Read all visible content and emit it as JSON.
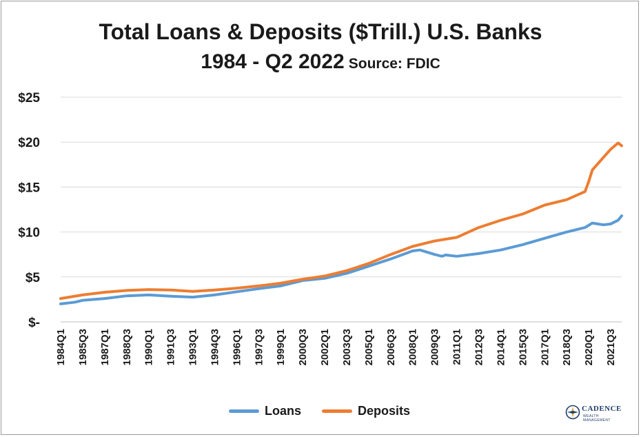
{
  "header": {
    "title": "Total Loans & Deposits ($Trill.) U.S. Banks",
    "subtitle": "1984 - Q2 2022",
    "source": "Source: FDIC"
  },
  "logo": {
    "name": "CADENCE",
    "tagline": "WEALTH MANAGEMENT"
  },
  "chart_data": {
    "type": "line",
    "title": "Total Loans & Deposits ($Trill.) U.S. Banks",
    "subtitle": "1984 - Q2 2022 Source: FDIC",
    "xlabel": "",
    "ylabel": "",
    "y_ticks": [
      "$-",
      "$5",
      "$10",
      "$15",
      "$20",
      "$25"
    ],
    "x_tick_labels": [
      "1984Q1",
      "1985Q3",
      "1987Q1",
      "1988Q3",
      "1990Q1",
      "1991Q3",
      "1993Q1",
      "1994Q3",
      "1996Q1",
      "1997Q3",
      "1999Q1",
      "2000Q3",
      "2002Q1",
      "2003Q3",
      "2005Q1",
      "2006Q3",
      "2008Q1",
      "2009Q3",
      "2011Q1",
      "2012Q3",
      "2014Q1",
      "2015Q3",
      "2017Q1",
      "2018Q3",
      "2020Q1",
      "2021Q3"
    ],
    "ylim": [
      0,
      25
    ],
    "grid": "horizontal",
    "legend_position": "bottom",
    "colors": {
      "loans": "#5b9bd5",
      "deposits": "#ed7d31"
    },
    "series": [
      {
        "name": "Loans",
        "color": "#5b9bd5",
        "points": [
          [
            "1984Q1",
            2.0
          ],
          [
            "1985Q1",
            2.2
          ],
          [
            "1985Q3",
            2.4
          ],
          [
            "1987Q1",
            2.6
          ],
          [
            "1988Q3",
            2.9
          ],
          [
            "1990Q1",
            3.0
          ],
          [
            "1991Q3",
            2.85
          ],
          [
            "1993Q1",
            2.75
          ],
          [
            "1994Q3",
            3.0
          ],
          [
            "1996Q1",
            3.35
          ],
          [
            "1997Q3",
            3.7
          ],
          [
            "1999Q1",
            4.0
          ],
          [
            "2000Q3",
            4.6
          ],
          [
            "2002Q1",
            4.85
          ],
          [
            "2003Q3",
            5.4
          ],
          [
            "2005Q1",
            6.2
          ],
          [
            "2006Q3",
            7.0
          ],
          [
            "2008Q1",
            7.9
          ],
          [
            "2008Q3",
            8.0
          ],
          [
            "2009Q3",
            7.5
          ],
          [
            "2010Q1",
            7.3
          ],
          [
            "2010Q2",
            7.45
          ],
          [
            "2011Q1",
            7.3
          ],
          [
            "2012Q3",
            7.6
          ],
          [
            "2014Q1",
            8.0
          ],
          [
            "2015Q3",
            8.6
          ],
          [
            "2017Q1",
            9.3
          ],
          [
            "2018Q3",
            10.0
          ],
          [
            "2019Q4",
            10.5
          ],
          [
            "2020Q2",
            11.0
          ],
          [
            "2021Q1",
            10.8
          ],
          [
            "2021Q3",
            10.9
          ],
          [
            "2022Q1",
            11.3
          ],
          [
            "2022Q2",
            11.8
          ]
        ]
      },
      {
        "name": "Deposits",
        "color": "#ed7d31",
        "points": [
          [
            "1984Q1",
            2.6
          ],
          [
            "1985Q3",
            3.0
          ],
          [
            "1987Q1",
            3.3
          ],
          [
            "1988Q3",
            3.5
          ],
          [
            "1990Q1",
            3.6
          ],
          [
            "1991Q3",
            3.55
          ],
          [
            "1993Q1",
            3.4
          ],
          [
            "1994Q3",
            3.55
          ],
          [
            "1996Q1",
            3.75
          ],
          [
            "1997Q3",
            4.0
          ],
          [
            "1999Q1",
            4.3
          ],
          [
            "2000Q3",
            4.75
          ],
          [
            "2002Q1",
            5.1
          ],
          [
            "2003Q3",
            5.7
          ],
          [
            "2005Q1",
            6.5
          ],
          [
            "2006Q3",
            7.5
          ],
          [
            "2008Q1",
            8.4
          ],
          [
            "2009Q3",
            9.0
          ],
          [
            "2011Q1",
            9.4
          ],
          [
            "2012Q3",
            10.5
          ],
          [
            "2014Q1",
            11.3
          ],
          [
            "2015Q3",
            12.0
          ],
          [
            "2017Q1",
            13.0
          ],
          [
            "2018Q3",
            13.6
          ],
          [
            "2019Q4",
            14.5
          ],
          [
            "2020Q1",
            15.6
          ],
          [
            "2020Q2",
            16.9
          ],
          [
            "2021Q1",
            18.3
          ],
          [
            "2021Q3",
            19.2
          ],
          [
            "2022Q1",
            19.9
          ],
          [
            "2022Q2",
            19.6
          ]
        ]
      }
    ]
  }
}
